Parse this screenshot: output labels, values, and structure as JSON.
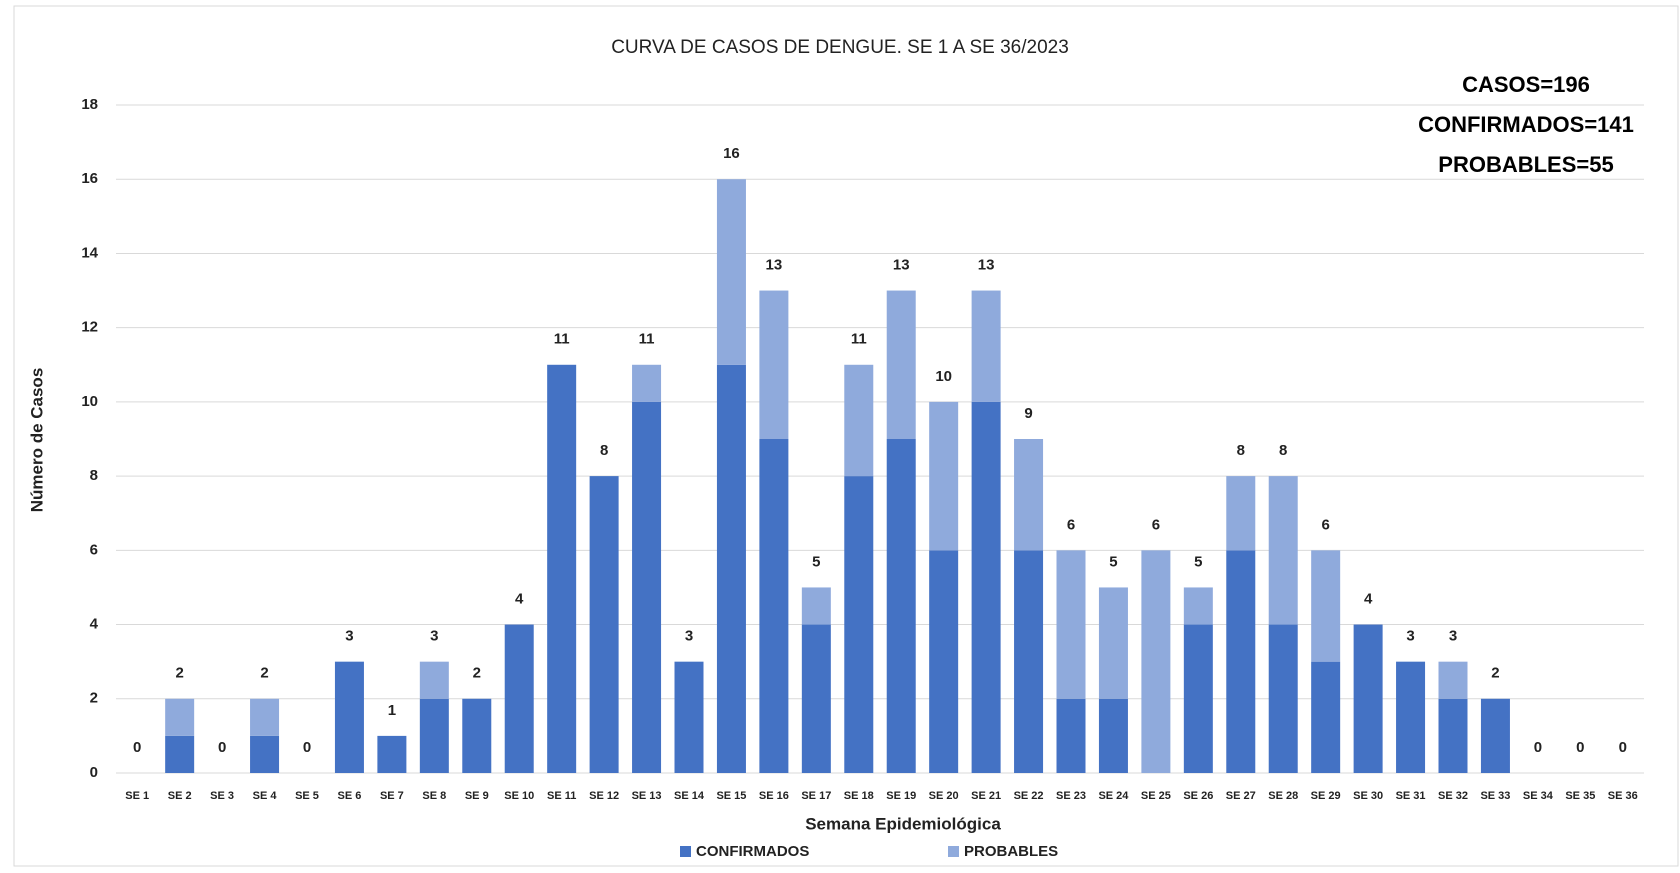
{
  "chart_data": {
    "type": "stacked_bar",
    "title": "CURVA DE CASOS DE DENGUE. SE 1 A SE 36/2023",
    "annotations": [
      "CASOS=196",
      "CONFIRMADOS=141",
      "PROBABLES=55"
    ],
    "x_label": "Semana Epidemiológica",
    "y_label": "Número de Casos",
    "categories": [
      "SE 1",
      "SE 2",
      "SE 3",
      "SE 4",
      "SE 5",
      "SE 6",
      "SE 7",
      "SE 8",
      "SE 9",
      "SE 10",
      "SE 11",
      "SE 12",
      "SE 13",
      "SE 14",
      "SE 15",
      "SE 16",
      "SE 17",
      "SE 18",
      "SE 19",
      "SE 20",
      "SE 21",
      "SE 22",
      "SE 23",
      "SE 24",
      "SE 25",
      "SE 26",
      "SE 27",
      "SE 28",
      "SE 29",
      "SE 30",
      "SE 31",
      "SE 32",
      "SE 33",
      "SE 34",
      "SE 35",
      "SE 36"
    ],
    "series": [
      {
        "name": "CONFIRMADOS",
        "color": "#4472c4",
        "values": [
          0,
          1,
          0,
          1,
          0,
          3,
          1,
          2,
          2,
          4,
          11,
          8,
          10,
          3,
          11,
          9,
          4,
          8,
          9,
          6,
          10,
          6,
          2,
          2,
          0,
          4,
          6,
          4,
          3,
          4,
          3,
          2,
          2,
          0,
          0,
          0
        ]
      },
      {
        "name": "PROBABLES",
        "color": "#8faadc",
        "values": [
          0,
          1,
          0,
          1,
          0,
          0,
          0,
          1,
          0,
          0,
          0,
          0,
          1,
          0,
          5,
          4,
          1,
          3,
          4,
          4,
          3,
          3,
          4,
          3,
          6,
          1,
          2,
          4,
          3,
          0,
          0,
          1,
          0,
          0,
          0,
          0
        ]
      }
    ],
    "totals": [
      0,
      2,
      0,
      2,
      0,
      3,
      1,
      3,
      2,
      4,
      11,
      8,
      11,
      3,
      16,
      13,
      5,
      11,
      13,
      10,
      13,
      9,
      6,
      5,
      6,
      5,
      8,
      8,
      6,
      4,
      3,
      3,
      2,
      0,
      0,
      0
    ],
    "ylim": [
      0,
      18
    ],
    "yticks": [
      0,
      2,
      4,
      6,
      8,
      10,
      12,
      14,
      16,
      18
    ],
    "grid": true,
    "legend": "bottom"
  }
}
